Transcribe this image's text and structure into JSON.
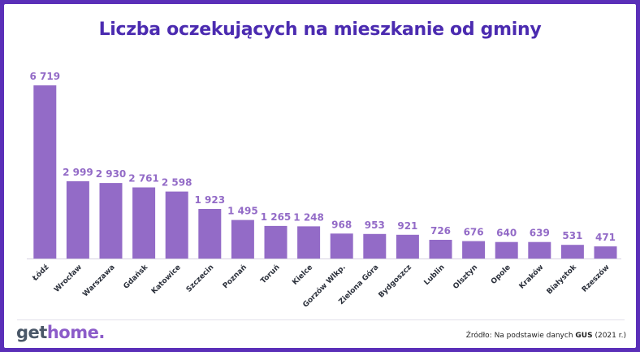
{
  "title": "Liczba oczekujących na mieszkanie od gminy",
  "logo": {
    "part1": "get",
    "part2": "home",
    "part3": "."
  },
  "source": {
    "prefix": "Źródło: Na podstawie danych",
    "org": "GUS",
    "suffix": "(2021 r.)"
  },
  "colors": {
    "bar": "#936bc7",
    "label": "#936bc7",
    "title": "#4b2bb0",
    "frame": "#5a2fb8"
  },
  "chart_data": {
    "type": "bar",
    "title": "Liczba oczekujących na mieszkanie od gminy",
    "categories": [
      "Łódź",
      "Wrocław",
      "Warszawa",
      "Gdańsk",
      "Katowice",
      "Szczecin",
      "Poznań",
      "Toruń",
      "Kielce",
      "Gorzów Wlkp.",
      "Zielona Góra",
      "Bydgoszcz",
      "Lublin",
      "Olsztyn",
      "Opole",
      "Kraków",
      "Białystok",
      "Rzeszów"
    ],
    "values": [
      6719,
      2999,
      2930,
      2761,
      2598,
      1923,
      1495,
      1265,
      1248,
      968,
      953,
      921,
      726,
      676,
      640,
      639,
      531,
      471
    ],
    "value_labels": [
      "6 719",
      "2 999",
      "2 930",
      "2 761",
      "2 598",
      "1 923",
      "1 495",
      "1 265",
      "1 248",
      "968",
      "953",
      "921",
      "726",
      "676",
      "640",
      "639",
      "531",
      "471"
    ],
    "ylim": [
      0,
      6719
    ],
    "grid": false,
    "legend": "none"
  }
}
